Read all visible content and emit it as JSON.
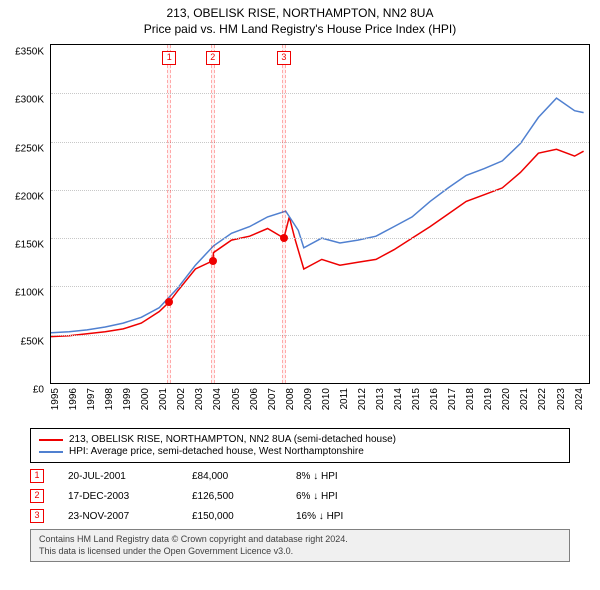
{
  "title": {
    "main": "213, OBELISK RISE, NORTHAMPTON, NN2 8UA",
    "sub": "Price paid vs. HM Land Registry's House Price Index (HPI)"
  },
  "chart": {
    "type": "line",
    "background_color": "#ffffff",
    "grid_color": "#c8c8c8",
    "border_color": "#000000",
    "xlim": [
      1995,
      2024.8
    ],
    "ylim": [
      0,
      350000
    ],
    "ytick_step": 50000,
    "yticks": [
      "£0",
      "£50K",
      "£100K",
      "£150K",
      "£200K",
      "£250K",
      "£300K",
      "£350K"
    ],
    "xticks": [
      1995,
      1996,
      1997,
      1998,
      1999,
      2000,
      2001,
      2002,
      2003,
      2004,
      2005,
      2006,
      2007,
      2008,
      2009,
      2010,
      2011,
      2012,
      2013,
      2014,
      2015,
      2016,
      2017,
      2018,
      2019,
      2020,
      2021,
      2022,
      2023,
      2024
    ],
    "xtick_fontsize": 10,
    "ytick_fontsize": 10,
    "line_width": 1.5,
    "series": [
      {
        "name": "price_paid",
        "color": "#EE0000",
        "points": [
          [
            1995,
            48000
          ],
          [
            1996,
            49000
          ],
          [
            1997,
            51000
          ],
          [
            1998,
            53000
          ],
          [
            1999,
            56000
          ],
          [
            2000,
            62000
          ],
          [
            2001,
            74000
          ],
          [
            2001.55,
            84000
          ],
          [
            2002,
            95000
          ],
          [
            2003,
            118000
          ],
          [
            2003.96,
            126500
          ],
          [
            2004,
            135000
          ],
          [
            2005,
            148000
          ],
          [
            2006,
            152000
          ],
          [
            2007,
            160000
          ],
          [
            2007.9,
            150000
          ],
          [
            2008.2,
            172000
          ],
          [
            2008.5,
            150000
          ],
          [
            2009,
            118000
          ],
          [
            2010,
            128000
          ],
          [
            2011,
            122000
          ],
          [
            2012,
            125000
          ],
          [
            2013,
            128000
          ],
          [
            2014,
            138000
          ],
          [
            2015,
            150000
          ],
          [
            2016,
            162000
          ],
          [
            2017,
            175000
          ],
          [
            2018,
            188000
          ],
          [
            2019,
            195000
          ],
          [
            2020,
            202000
          ],
          [
            2021,
            218000
          ],
          [
            2022,
            238000
          ],
          [
            2023,
            242000
          ],
          [
            2024,
            235000
          ],
          [
            2024.5,
            240000
          ]
        ]
      },
      {
        "name": "hpi",
        "color": "#5080D0",
        "points": [
          [
            1995,
            52000
          ],
          [
            1996,
            53000
          ],
          [
            1997,
            55000
          ],
          [
            1998,
            58000
          ],
          [
            1999,
            62000
          ],
          [
            2000,
            68000
          ],
          [
            2001,
            78000
          ],
          [
            2002,
            98000
          ],
          [
            2003,
            122000
          ],
          [
            2004,
            142000
          ],
          [
            2005,
            155000
          ],
          [
            2006,
            162000
          ],
          [
            2007,
            172000
          ],
          [
            2008,
            178000
          ],
          [
            2008.7,
            158000
          ],
          [
            2009,
            140000
          ],
          [
            2010,
            150000
          ],
          [
            2011,
            145000
          ],
          [
            2012,
            148000
          ],
          [
            2013,
            152000
          ],
          [
            2014,
            162000
          ],
          [
            2015,
            172000
          ],
          [
            2016,
            188000
          ],
          [
            2017,
            202000
          ],
          [
            2018,
            215000
          ],
          [
            2019,
            222000
          ],
          [
            2020,
            230000
          ],
          [
            2021,
            248000
          ],
          [
            2022,
            275000
          ],
          [
            2023,
            295000
          ],
          [
            2024,
            282000
          ],
          [
            2024.5,
            280000
          ]
        ]
      }
    ],
    "markers": [
      {
        "n": "1",
        "x": 2001.55,
        "y": 84000,
        "color": "#EE0000"
      },
      {
        "n": "2",
        "x": 2003.96,
        "y": 126500,
        "color": "#EE0000"
      },
      {
        "n": "3",
        "x": 2007.9,
        "y": 150000,
        "color": "#EE0000"
      }
    ],
    "marker_box_color": "#EE0000",
    "vband_color": "rgba(255,0,0,0.05)"
  },
  "legend": {
    "items": [
      {
        "color": "#EE0000",
        "label": "213, OBELISK RISE, NORTHAMPTON, NN2 8UA (semi-detached house)"
      },
      {
        "color": "#5080D0",
        "label": "HPI: Average price, semi-detached house, West Northamptonshire"
      }
    ]
  },
  "events": [
    {
      "n": "1",
      "date": "20-JUL-2001",
      "price": "£84,000",
      "diff": "8% ↓ HPI"
    },
    {
      "n": "2",
      "date": "17-DEC-2003",
      "price": "£126,500",
      "diff": "6% ↓ HPI"
    },
    {
      "n": "3",
      "date": "23-NOV-2007",
      "price": "£150,000",
      "diff": "16% ↓ HPI"
    }
  ],
  "footer": {
    "line1": "Contains HM Land Registry data © Crown copyright and database right 2024.",
    "line2": "This data is licensed under the Open Government Licence v3.0."
  }
}
